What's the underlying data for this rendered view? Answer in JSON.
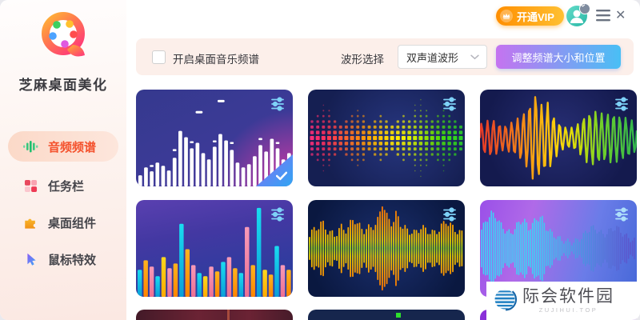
{
  "sidebar": {
    "title": "芝麻桌面美化",
    "items": [
      {
        "label": "音频频谱",
        "icon": "equalizer-icon",
        "active": true
      },
      {
        "label": "任务栏",
        "icon": "grid-icon",
        "active": false
      },
      {
        "label": "桌面组件",
        "icon": "puzzle-icon",
        "active": false
      },
      {
        "label": "鼠标特效",
        "icon": "cursor-icon",
        "active": false
      }
    ]
  },
  "titlebar": {
    "vip_label": "开通VIP",
    "close_glyph": "✕",
    "icons": [
      "crown-icon",
      "avatar-icon",
      "menu-icon",
      "close-icon"
    ]
  },
  "toolbar": {
    "checkbox_label": "开启桌面音乐频谱",
    "checkbox_checked": false,
    "waveform_label": "波形选择",
    "waveform_selected": "双声道波形",
    "adjust_button_label": "调整频谱大小和位置"
  },
  "gallery": {
    "thumbnails": [
      {
        "name": "white-bars-spectrum",
        "selected": true
      },
      {
        "name": "dot-matrix-wave",
        "selected": false
      },
      {
        "name": "rainbow-line-wave",
        "selected": false
      },
      {
        "name": "colorful-bars-spectrum",
        "selected": false
      },
      {
        "name": "orange-green-dense-waveform",
        "selected": false
      },
      {
        "name": "cyan-purple-waveform",
        "selected": false
      },
      {
        "name": "partial-dark-red",
        "selected": false
      },
      {
        "name": "partial-navy",
        "selected": false
      },
      {
        "name": "partial-purple",
        "selected": false
      }
    ],
    "overlay_icon": "sliders-icon",
    "selected_badge_icon": "check-icon"
  },
  "watermark": {
    "text": "际会软件园",
    "subtext": "ZUJIHUI.TOP"
  },
  "colors": {
    "active_text": "#f4512c",
    "active_pill": "#fbd9c8",
    "toolbar_bg": "#fcefea",
    "vip_gradient": [
      "#ff8e00",
      "#ffc032"
    ],
    "adjust_gradient": [
      "#c573f0",
      "#49bff5"
    ],
    "sidebar_bg_bottom": "#fbe8e2"
  }
}
